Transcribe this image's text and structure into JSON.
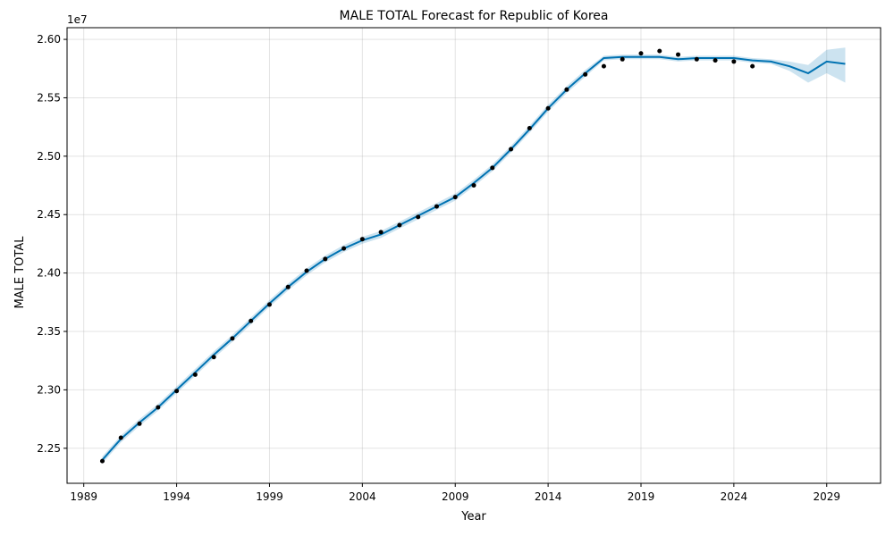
{
  "chart_data": {
    "type": "line",
    "title": "MALE TOTAL Forecast for Republic of Korea",
    "xlabel": "Year",
    "ylabel": "MALE TOTAL",
    "y_offset_label": "1e7",
    "xlim": [
      1988.1,
      2031.9
    ],
    "ylim": [
      22200000,
      26100000
    ],
    "x_ticks": [
      1989,
      1994,
      1999,
      2004,
      2009,
      2014,
      2019,
      2024,
      2029
    ],
    "y_ticks": [
      22500000,
      23000000,
      23500000,
      24000000,
      24500000,
      25000000,
      25500000,
      26000000
    ],
    "y_tick_labels": [
      "2.25",
      "2.30",
      "2.35",
      "2.40",
      "2.45",
      "2.50",
      "2.55",
      "2.60"
    ],
    "grid": true,
    "colors": {
      "forecast": "#0072b2",
      "interval": "#0072b2",
      "observed": "#000000"
    },
    "observed": {
      "x": [
        1990,
        1991,
        1992,
        1993,
        1994,
        1995,
        1996,
        1997,
        1998,
        1999,
        2000,
        2001,
        2002,
        2003,
        2004,
        2005,
        2006,
        2007,
        2008,
        2009,
        2010,
        2011,
        2012,
        2013,
        2014,
        2015,
        2016,
        2017,
        2018,
        2019,
        2020,
        2021,
        2022,
        2023,
        2024,
        2025
      ],
      "y": [
        22390000,
        22590000,
        22710000,
        22850000,
        22990000,
        23130000,
        23280000,
        23440000,
        23590000,
        23730000,
        23880000,
        24020000,
        24120000,
        24210000,
        24290000,
        24350000,
        24410000,
        24480000,
        24570000,
        24650000,
        24750000,
        24900000,
        25060000,
        25240000,
        25410000,
        25570000,
        25700000,
        25770000,
        25830000,
        25880000,
        25900000,
        25870000,
        25830000,
        25820000,
        25810000,
        25770000
      ]
    },
    "forecast": {
      "x": [
        1990,
        1991,
        1992,
        1993,
        1994,
        1995,
        1996,
        1997,
        1998,
        1999,
        2000,
        2001,
        2002,
        2003,
        2004,
        2005,
        2006,
        2007,
        2008,
        2009,
        2010,
        2011,
        2012,
        2013,
        2014,
        2015,
        2016,
        2017,
        2018,
        2019,
        2020,
        2021,
        2022,
        2023,
        2024,
        2025,
        2026,
        2027,
        2028,
        2029,
        2030
      ],
      "y": [
        22400000,
        22580000,
        22720000,
        22850000,
        23000000,
        23150000,
        23300000,
        23440000,
        23590000,
        23740000,
        23880000,
        24010000,
        24120000,
        24210000,
        24280000,
        24330000,
        24410000,
        24490000,
        24570000,
        24650000,
        24770000,
        24900000,
        25060000,
        25230000,
        25410000,
        25570000,
        25710000,
        25840000,
        25850000,
        25850000,
        25850000,
        25830000,
        25840000,
        25840000,
        25840000,
        25820000,
        25810000,
        25770000,
        25710000,
        25810000,
        25790000
      ],
      "upper": [
        22430000,
        22610000,
        22750000,
        22880000,
        23030000,
        23180000,
        23330000,
        23470000,
        23620000,
        23770000,
        23910000,
        24040000,
        24150000,
        24240000,
        24310000,
        24360000,
        24440000,
        24520000,
        24600000,
        24680000,
        24800000,
        24930000,
        25090000,
        25260000,
        25440000,
        25600000,
        25740000,
        25860000,
        25870000,
        25870000,
        25870000,
        25850000,
        25860000,
        25860000,
        25860000,
        25840000,
        25830000,
        25810000,
        25780000,
        25910000,
        25930000
      ],
      "lower": [
        22370000,
        22550000,
        22690000,
        22820000,
        22970000,
        23120000,
        23270000,
        23410000,
        23560000,
        23710000,
        23850000,
        23980000,
        24090000,
        24180000,
        24250000,
        24300000,
        24380000,
        24460000,
        24540000,
        24620000,
        24740000,
        24870000,
        25030000,
        25200000,
        25380000,
        25540000,
        25680000,
        25820000,
        25830000,
        25830000,
        25830000,
        25810000,
        25820000,
        25820000,
        25820000,
        25800000,
        25790000,
        25730000,
        25630000,
        25710000,
        25630000
      ]
    }
  }
}
